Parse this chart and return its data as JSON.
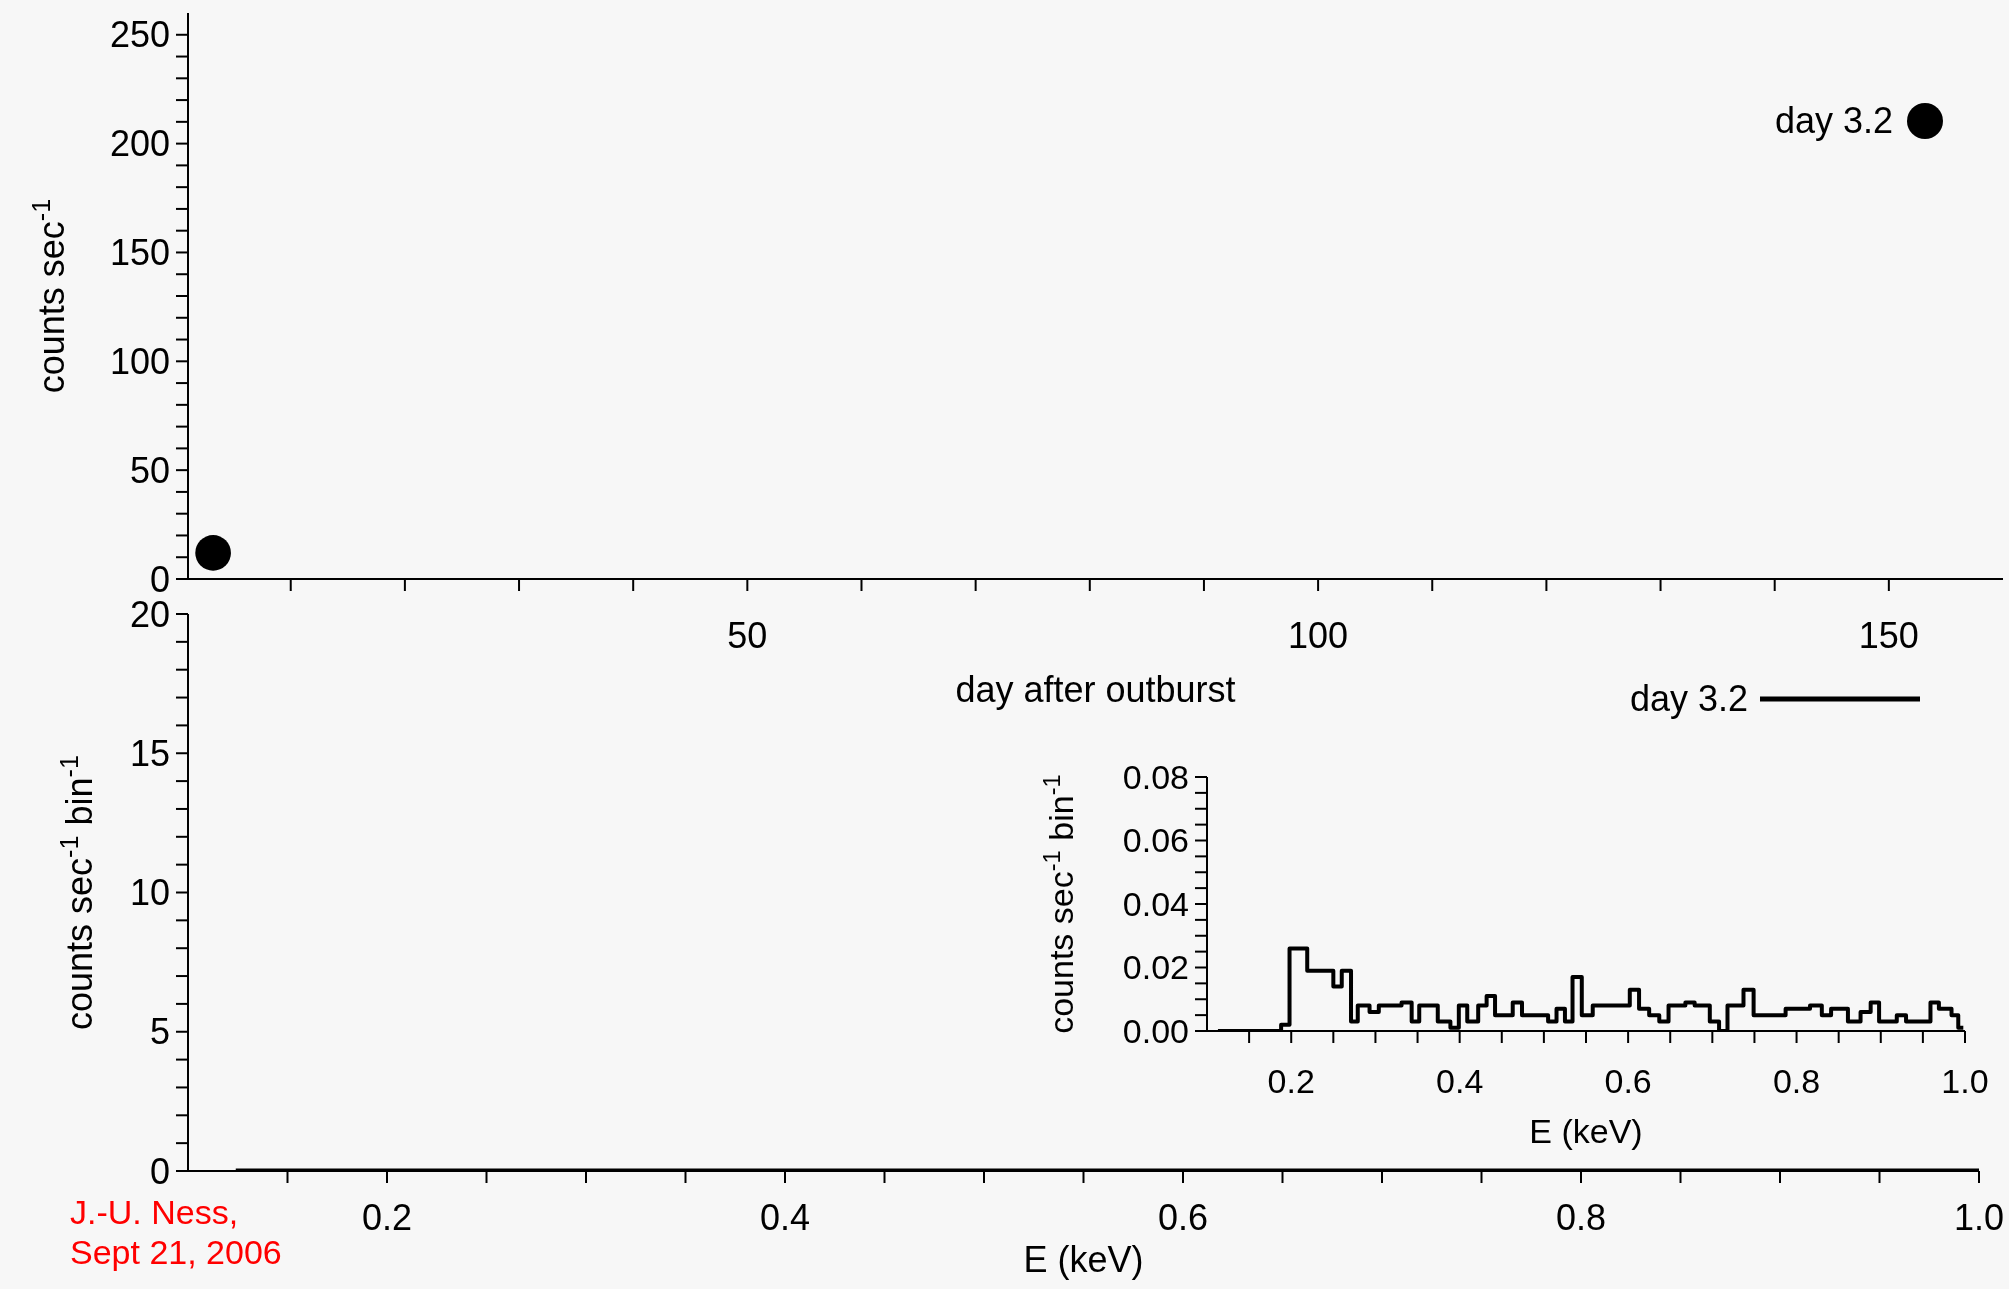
{
  "chart_data": [
    {
      "type": "scatter",
      "xlabel": "day after outburst",
      "ylabel": "counts sec$^{-1}$",
      "marker": "circle",
      "legend": "top right",
      "xlim": [
        1,
        160
      ],
      "ylim": [
        0,
        260
      ],
      "xticks": [
        {
          "value": 10,
          "label": null
        },
        {
          "value": 20,
          "label": null
        },
        {
          "value": 30,
          "label": null
        },
        {
          "value": 40,
          "label": null
        },
        50,
        {
          "value": 60,
          "label": null
        },
        {
          "value": 70,
          "label": null
        },
        {
          "value": 80,
          "label": null
        },
        {
          "value": 90,
          "label": null
        },
        100,
        {
          "value": 110,
          "label": null
        },
        {
          "value": 120,
          "label": null
        },
        {
          "value": 130,
          "label": null
        },
        {
          "value": 140,
          "label": null
        },
        150
      ],
      "yticks": [
        0,
        {
          "value": 10,
          "label": null
        },
        {
          "value": 20,
          "label": null
        },
        {
          "value": 30,
          "label": null
        },
        {
          "value": 40,
          "label": null
        },
        50,
        {
          "value": 60,
          "label": null
        },
        {
          "value": 70,
          "label": null
        },
        {
          "value": 80,
          "label": null
        },
        {
          "value": 90,
          "label": null
        },
        100,
        {
          "value": 110,
          "label": null
        },
        {
          "value": 120,
          "label": null
        },
        {
          "value": 130,
          "label": null
        },
        {
          "value": 140,
          "label": null
        },
        150,
        {
          "value": 160,
          "label": null
        },
        {
          "value": 170,
          "label": null
        },
        {
          "value": 180,
          "label": null
        },
        {
          "value": 190,
          "label": null
        },
        200,
        {
          "value": 210,
          "label": null
        },
        {
          "value": 220,
          "label": null
        },
        {
          "value": 230,
          "label": null
        },
        {
          "value": 240,
          "label": null
        },
        250
      ],
      "series": [
        {
          "name": "day 3.2",
          "color": "#000000",
          "x": [
            3.2
          ],
          "values": [
            12
          ]
        }
      ]
    },
    {
      "type": "step",
      "xlabel": "E (keV)",
      "ylabel": "counts sec$^{-1}$ bin$^{-1}$",
      "legend": "top right",
      "line_style": "solid",
      "xlim": [
        0.1,
        1.0
      ],
      "ylim": [
        0,
        20
      ],
      "xticks": [
        {
          "value": 0.15,
          "label": null
        },
        0.2,
        {
          "value": 0.25,
          "label": null
        },
        {
          "value": 0.3,
          "label": null
        },
        {
          "value": 0.35,
          "label": null
        },
        0.4,
        {
          "value": 0.45,
          "label": null
        },
        {
          "value": 0.5,
          "label": null
        },
        {
          "value": 0.55,
          "label": null
        },
        0.6,
        {
          "value": 0.65,
          "label": null
        },
        {
          "value": 0.7,
          "label": null
        },
        {
          "value": 0.75,
          "label": null
        },
        0.8,
        {
          "value": 0.85,
          "label": null
        },
        {
          "value": 0.9,
          "label": null
        },
        {
          "value": 0.95,
          "label": null
        },
        {
          "value": 1.0,
          "label": "1.0"
        }
      ],
      "yticks": [
        0,
        {
          "value": 1,
          "label": null
        },
        {
          "value": 2,
          "label": null
        },
        {
          "value": 3,
          "label": null
        },
        {
          "value": 4,
          "label": null
        },
        5,
        {
          "value": 6,
          "label": null
        },
        {
          "value": 7,
          "label": null
        },
        {
          "value": 8,
          "label": null
        },
        {
          "value": 9,
          "label": null
        },
        10,
        {
          "value": 11,
          "label": null
        },
        {
          "value": 12,
          "label": null
        },
        {
          "value": 13,
          "label": null
        },
        {
          "value": 14,
          "label": null
        },
        15,
        {
          "value": 16,
          "label": null
        },
        {
          "value": 17,
          "label": null
        },
        {
          "value": 18,
          "label": null
        },
        {
          "value": 19,
          "label": null
        },
        20
      ],
      "annotations": [
        "J.-U. Ness,\nSept 21, 2006"
      ],
      "series": [
        {
          "name": "day 3.2",
          "color": "#000000",
          "x": [
            0.124,
            1.0
          ],
          "values": [
            0,
            0
          ]
        }
      ]
    },
    {
      "type": "step",
      "xlabel": "E (keV)",
      "ylabel": "counts sec$^{-1}$ bin$^{-1}$",
      "line_style": "solid",
      "xlim": [
        0.1,
        1.0
      ],
      "ylim": [
        0,
        0.08
      ],
      "xticks": [
        {
          "value": 0.15,
          "label": null
        },
        0.2,
        {
          "value": 0.25,
          "label": null
        },
        {
          "value": 0.3,
          "label": null
        },
        {
          "value": 0.35,
          "label": null
        },
        0.4,
        {
          "value": 0.45,
          "label": null
        },
        {
          "value": 0.5,
          "label": null
        },
        {
          "value": 0.55,
          "label": null
        },
        0.6,
        {
          "value": 0.65,
          "label": null
        },
        {
          "value": 0.7,
          "label": null
        },
        {
          "value": 0.75,
          "label": null
        },
        0.8,
        {
          "value": 0.85,
          "label": null
        },
        {
          "value": 0.9,
          "label": null
        },
        {
          "value": 0.95,
          "label": null
        },
        {
          "value": 1.0,
          "label": "1.0"
        }
      ],
      "yticks": [
        {
          "value": 0,
          "label": "0.00"
        },
        {
          "value": 0.005,
          "label": null
        },
        {
          "value": 0.01,
          "label": null
        },
        {
          "value": 0.015,
          "label": null
        },
        {
          "value": 0.02,
          "label": "0.02"
        },
        {
          "value": 0.025,
          "label": null
        },
        {
          "value": 0.03,
          "label": null
        },
        {
          "value": 0.035,
          "label": null
        },
        {
          "value": 0.04,
          "label": "0.04"
        },
        {
          "value": 0.045,
          "label": null
        },
        {
          "value": 0.05,
          "label": null
        },
        {
          "value": 0.055,
          "label": null
        },
        {
          "value": 0.06,
          "label": "0.06"
        },
        {
          "value": 0.065,
          "label": null
        },
        {
          "value": 0.07,
          "label": null
        },
        {
          "value": 0.075,
          "label": null
        },
        {
          "value": 0.08,
          "label": "0.08"
        }
      ],
      "series": [
        {
          "color": "#000000",
          "x": [
            0.113,
            0.188,
            0.198,
            0.219,
            0.25,
            0.26,
            0.271,
            0.279,
            0.293,
            0.304,
            0.331,
            0.343,
            0.352,
            0.374,
            0.389,
            0.399,
            0.409,
            0.422,
            0.432,
            0.442,
            0.463,
            0.474,
            0.505,
            0.515,
            0.525,
            0.534,
            0.545,
            0.558,
            0.602,
            0.613,
            0.625,
            0.637,
            0.648,
            0.668,
            0.679,
            0.697,
            0.708,
            0.718,
            0.737,
            0.749,
            0.787,
            0.816,
            0.83,
            0.841,
            0.861,
            0.876,
            0.888,
            0.898,
            0.919,
            0.93,
            0.959,
            0.969,
            0.984,
            0.992,
            0.998
          ],
          "values": [
            0,
            0.002,
            0.026,
            0.019,
            0.014,
            0.019,
            0.003,
            0.008,
            0.006,
            0.008,
            0.009,
            0.003,
            0.008,
            0.003,
            0.001,
            0.008,
            0.003,
            0.008,
            0.011,
            0.005,
            0.009,
            0.005,
            0.003,
            0.007,
            0.003,
            0.017,
            0.005,
            0.008,
            0.013,
            0.007,
            0.005,
            0.003,
            0.008,
            0.009,
            0.008,
            0.003,
            0,
            0.008,
            0.013,
            0.005,
            0.007,
            0.008,
            0.005,
            0.007,
            0.003,
            0.006,
            0.009,
            0.003,
            0.005,
            0.003,
            0.009,
            0.007,
            0.005,
            0.001,
            0.001
          ]
        }
      ]
    }
  ]
}
